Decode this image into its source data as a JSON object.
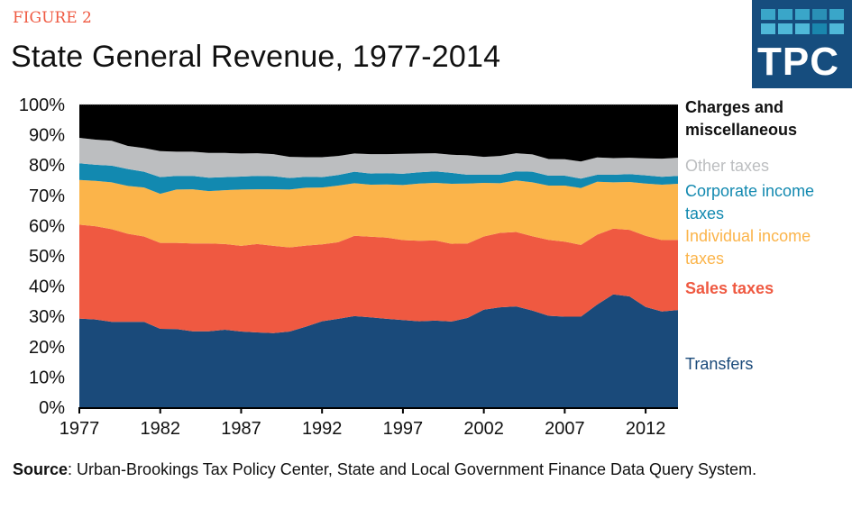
{
  "header": {
    "figure_label": "FIGURE 2",
    "title": "State General Revenue, 1977-2014",
    "logo_text": "TPC"
  },
  "source": {
    "label": "Source",
    "text": ": Urban-Brookings Tax Policy Center, State and Local Government Finance Data Query System."
  },
  "chart_data": {
    "type": "area",
    "stacked": true,
    "title": "State General Revenue, 1977-2014",
    "xlabel": "",
    "ylabel": "",
    "ylim": [
      0,
      100
    ],
    "xlim": [
      1977,
      2014
    ],
    "y_ticks": [
      "0%",
      "10%",
      "20%",
      "30%",
      "40%",
      "50%",
      "60%",
      "70%",
      "80%",
      "90%",
      "100%"
    ],
    "x_ticks": [
      "1977",
      "1982",
      "1987",
      "1992",
      "1997",
      "2002",
      "2007",
      "2012"
    ],
    "legend_position": "right",
    "x": [
      1977,
      1978,
      1979,
      1980,
      1981,
      1982,
      1983,
      1984,
      1985,
      1986,
      1987,
      1988,
      1989,
      1990,
      1991,
      1992,
      1993,
      1994,
      1995,
      1996,
      1997,
      1998,
      1999,
      2000,
      2001,
      2002,
      2003,
      2004,
      2005,
      2006,
      2007,
      2008,
      2009,
      2010,
      2011,
      2012,
      2013,
      2014
    ],
    "series": [
      {
        "name": "Transfers",
        "color": "#1a4a7a",
        "values": [
          29.3,
          29.0,
          28.2,
          28.2,
          28.2,
          25.9,
          25.8,
          25.1,
          25.1,
          25.6,
          25.0,
          24.7,
          24.5,
          25.0,
          26.6,
          28.4,
          29.2,
          30.1,
          29.7,
          29.2,
          28.8,
          28.4,
          28.6,
          28.3,
          29.5,
          32.2,
          33.0,
          33.3,
          31.9,
          30.2,
          29.9,
          29.9,
          33.9,
          37.3,
          36.6,
          33.1,
          31.6,
          32.1
        ],
        "label": "Transfers"
      },
      {
        "name": "Sales taxes",
        "color": "#ef5941",
        "values": [
          31.0,
          30.8,
          30.6,
          29.1,
          28.2,
          28.4,
          28.5,
          29.0,
          29.0,
          28.3,
          28.3,
          29.2,
          28.8,
          27.8,
          26.8,
          25.4,
          25.3,
          26.5,
          26.6,
          26.8,
          26.4,
          26.6,
          26.5,
          25.7,
          24.6,
          24.2,
          24.6,
          24.6,
          24.6,
          25.1,
          24.8,
          23.7,
          23.1,
          21.7,
          22.0,
          23.5,
          23.6,
          23.2
        ],
        "label": "Sales taxes"
      },
      {
        "name": "Individual income taxes",
        "color": "#fbb44a",
        "values": [
          14.8,
          15.0,
          15.5,
          15.8,
          16.2,
          16.2,
          17.6,
          17.9,
          17.3,
          17.8,
          18.6,
          18.1,
          18.7,
          19.1,
          19.1,
          18.8,
          18.7,
          17.4,
          17.2,
          17.6,
          18.2,
          18.9,
          19.0,
          19.8,
          19.8,
          17.7,
          16.4,
          17.0,
          17.8,
          17.9,
          18.5,
          18.8,
          17.5,
          15.3,
          15.8,
          17.3,
          18.3,
          18.5
        ],
        "label": "Individual income taxes"
      },
      {
        "name": "Corporate income taxes",
        "color": "#1289b0",
        "values": [
          5.5,
          5.3,
          5.5,
          5.6,
          5.2,
          5.5,
          4.5,
          4.4,
          4.4,
          4.3,
          4.3,
          4.4,
          4.3,
          3.8,
          3.6,
          3.4,
          3.5,
          3.8,
          3.7,
          3.7,
          3.7,
          3.7,
          3.8,
          3.6,
          2.9,
          2.7,
          2.8,
          3.0,
          3.5,
          3.3,
          3.3,
          3.1,
          2.3,
          2.5,
          2.6,
          2.7,
          2.6,
          2.6
        ],
        "label": "Corporate income taxes"
      },
      {
        "name": "Other taxes",
        "color": "#bcbec0",
        "values": [
          8.4,
          8.3,
          8.2,
          7.6,
          7.8,
          8.6,
          8.0,
          8.0,
          8.2,
          8.0,
          7.6,
          7.5,
          7.3,
          7.0,
          6.5,
          6.6,
          6.3,
          6.0,
          6.4,
          6.3,
          6.6,
          6.2,
          6.0,
          6.0,
          6.4,
          5.9,
          6.2,
          6.0,
          5.7,
          5.5,
          5.4,
          5.7,
          5.7,
          5.5,
          5.4,
          5.6,
          6.0,
          6.0
        ],
        "label": "Other taxes"
      },
      {
        "name": "Charges and miscellaneous",
        "color": "#000000",
        "values": [
          11.0,
          11.6,
          12.0,
          13.7,
          14.4,
          15.4,
          15.6,
          15.6,
          16.0,
          16.0,
          16.2,
          16.1,
          16.4,
          17.3,
          17.4,
          17.4,
          17.0,
          16.2,
          16.4,
          16.4,
          16.3,
          16.2,
          16.1,
          16.6,
          16.8,
          17.3,
          17.0,
          16.1,
          16.5,
          18.0,
          18.1,
          18.8,
          17.5,
          17.7,
          17.6,
          17.8,
          17.9,
          17.6
        ],
        "label": "Charges and miscellaneous"
      }
    ]
  }
}
